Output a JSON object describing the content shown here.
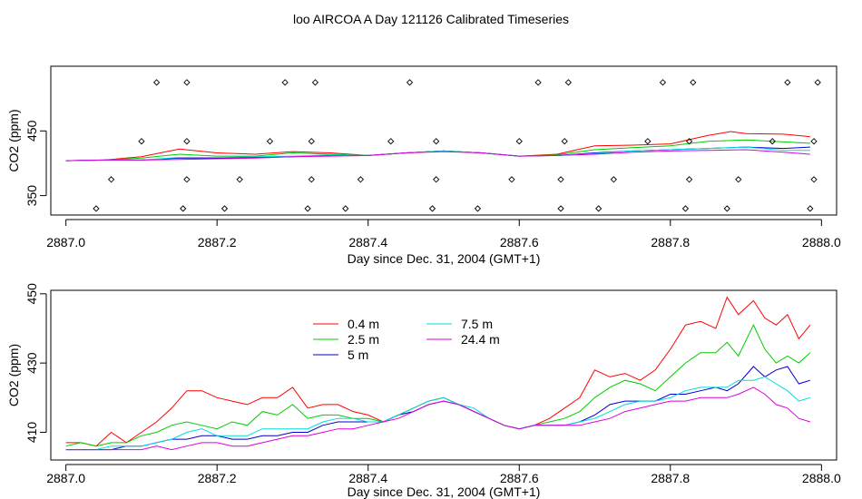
{
  "title": "loo AIRCOA A  Day 121126  Calibrated Timeseries",
  "chart_data": [
    {
      "type": "scatter",
      "title": "loo AIRCOA A  Day 121126  Calibrated Timeseries",
      "xlabel": "Day since Dec. 31, 2004 (GMT+1)",
      "ylabel": "CO2 (ppm)",
      "xlim": [
        2886.98,
        2888.02
      ],
      "ylim": [
        320,
        550
      ],
      "xticks": [
        2887.0,
        2887.2,
        2887.4,
        2887.6,
        2887.8,
        2888.0
      ],
      "xtick_labels": [
        "2887.0",
        "2887.2",
        "2887.4",
        "2887.6",
        "2887.8",
        "2888.0"
      ],
      "yticks": [
        350,
        450
      ],
      "ytick_labels": [
        "350",
        "450"
      ],
      "series": [
        {
          "color": "#ff0000",
          "x": [
            2887.0,
            2887.05,
            2887.1,
            2887.15,
            2887.2,
            2887.25,
            2887.3,
            2887.35,
            2887.4,
            2887.45,
            2887.5,
            2887.55,
            2887.6,
            2887.65,
            2887.7,
            2887.75,
            2887.8,
            2887.85,
            2887.88,
            2887.9,
            2887.95,
            2887.985
          ],
          "y": [
            404,
            405,
            410,
            422,
            416,
            414,
            418,
            416,
            412,
            416,
            419,
            416,
            411,
            414,
            427,
            428,
            430,
            443,
            449,
            446,
            445,
            441
          ]
        },
        {
          "color": "#00cc00",
          "x": [
            2887.0,
            2887.05,
            2887.1,
            2887.15,
            2887.2,
            2887.25,
            2887.3,
            2887.35,
            2887.4,
            2887.45,
            2887.5,
            2887.55,
            2887.6,
            2887.65,
            2887.7,
            2887.75,
            2887.8,
            2887.85,
            2887.9,
            2887.95,
            2887.985
          ],
          "y": [
            404,
            405,
            408,
            414,
            411,
            411,
            416,
            414,
            412,
            416,
            419,
            416,
            411,
            413,
            421,
            424,
            427,
            434,
            436,
            433,
            431
          ]
        },
        {
          "color": "#0000cc",
          "x": [
            2887.0,
            2887.05,
            2887.1,
            2887.15,
            2887.2,
            2887.25,
            2887.3,
            2887.35,
            2887.4,
            2887.45,
            2887.5,
            2887.55,
            2887.6,
            2887.65,
            2887.7,
            2887.75,
            2887.8,
            2887.85,
            2887.9,
            2887.95,
            2887.985
          ],
          "y": [
            404,
            405,
            405,
            408,
            408,
            409,
            410,
            412,
            412,
            416,
            419,
            416,
            411,
            412,
            416,
            419,
            421,
            423,
            425,
            423,
            425
          ]
        },
        {
          "color": "#00dddd",
          "x": [
            2887.0,
            2887.05,
            2887.1,
            2887.15,
            2887.2,
            2887.25,
            2887.3,
            2887.35,
            2887.4,
            2887.45,
            2887.5,
            2887.55,
            2887.6,
            2887.65,
            2887.7,
            2887.75,
            2887.8,
            2887.85,
            2887.9,
            2887.95,
            2887.985
          ],
          "y": [
            404,
            405,
            405,
            409,
            409,
            410,
            411,
            413,
            412,
            416,
            419,
            416,
            411,
            412,
            415,
            419,
            421,
            423,
            425,
            420,
            420
          ]
        },
        {
          "color": "#dd00dd",
          "x": [
            2887.0,
            2887.05,
            2887.1,
            2887.15,
            2887.2,
            2887.25,
            2887.3,
            2887.35,
            2887.4,
            2887.45,
            2887.5,
            2887.55,
            2887.6,
            2887.65,
            2887.7,
            2887.75,
            2887.8,
            2887.85,
            2887.9,
            2887.95,
            2887.985
          ],
          "y": [
            404,
            405,
            405,
            406,
            407,
            408,
            410,
            411,
            412,
            416,
            418,
            416,
            411,
            412,
            414,
            417,
            419,
            420,
            421,
            417,
            414
          ]
        }
      ],
      "points": {
        "x": [
          2887.04,
          2887.06,
          2887.1,
          2887.12,
          2887.155,
          2887.16,
          2887.16,
          2887.16,
          2887.21,
          2887.23,
          2887.27,
          2887.29,
          2887.32,
          2887.325,
          2887.325,
          2887.33,
          2887.37,
          2887.39,
          2887.43,
          2887.455,
          2887.485,
          2887.49,
          2887.49,
          2887.545,
          2887.59,
          2887.6,
          2887.625,
          2887.655,
          2887.655,
          2887.66,
          2887.665,
          2887.705,
          2887.725,
          2887.77,
          2887.79,
          2887.82,
          2887.825,
          2887.825,
          2887.83,
          2887.875,
          2887.89,
          2887.935,
          2887.955,
          2887.985,
          2887.99,
          2887.99,
          2887.995
        ],
        "y": [
          330,
          375,
          434,
          525,
          330,
          375,
          434,
          525,
          330,
          375,
          434,
          525,
          330,
          375,
          434,
          525,
          330,
          375,
          434,
          525,
          330,
          375,
          434,
          330,
          375,
          434,
          525,
          330,
          375,
          434,
          525,
          330,
          375,
          434,
          525,
          330,
          375,
          434,
          525,
          330,
          375,
          434,
          525,
          330,
          375,
          434,
          525
        ]
      },
      "grid": false
    },
    {
      "type": "line",
      "xlabel": "Day since Dec. 31, 2004 (GMT+1)",
      "ylabel": "CO2 (ppm)",
      "xlim": [
        2886.98,
        2888.02
      ],
      "ylim": [
        402,
        451
      ],
      "xticks": [
        2887.0,
        2887.2,
        2887.4,
        2887.6,
        2887.8,
        2888.0
      ],
      "xtick_labels": [
        "2887.0",
        "2887.2",
        "2887.4",
        "2887.6",
        "2887.8",
        "2888.0"
      ],
      "yticks": [
        410,
        430,
        450
      ],
      "ytick_labels": [
        "410",
        "430",
        "450"
      ],
      "legend_position": "top-center",
      "series": [
        {
          "name": "0.4 m",
          "color": "#ff0000",
          "x": [
            2887.0,
            2887.02,
            2887.04,
            2887.06,
            2887.08,
            2887.1,
            2887.12,
            2887.14,
            2887.16,
            2887.18,
            2887.2,
            2887.22,
            2887.24,
            2887.26,
            2887.28,
            2887.3,
            2887.32,
            2887.34,
            2887.36,
            2887.38,
            2887.4,
            2887.42,
            2887.44,
            2887.46,
            2887.48,
            2887.5,
            2887.52,
            2887.54,
            2887.56,
            2887.58,
            2887.6,
            2887.62,
            2887.64,
            2887.66,
            2887.68,
            2887.7,
            2887.72,
            2887.74,
            2887.76,
            2887.78,
            2887.8,
            2887.82,
            2887.84,
            2887.86,
            2887.875,
            2887.89,
            2887.91,
            2887.925,
            2887.94,
            2887.955,
            2887.97,
            2887.985
          ],
          "y": [
            407,
            407,
            406,
            410,
            407,
            410,
            413,
            417,
            422,
            422,
            420,
            419,
            418,
            420,
            420,
            423,
            417,
            418,
            418,
            416,
            415,
            413,
            415,
            417,
            419,
            420,
            418,
            416,
            414,
            412,
            411,
            412,
            414,
            417,
            420,
            428,
            426,
            427,
            425,
            428,
            434,
            441,
            442,
            440,
            449,
            444,
            448,
            443,
            441,
            444,
            437,
            441
          ]
        },
        {
          "name": "2.5 m",
          "color": "#00cc00",
          "x": [
            2887.0,
            2887.02,
            2887.04,
            2887.06,
            2887.08,
            2887.1,
            2887.12,
            2887.14,
            2887.16,
            2887.18,
            2887.2,
            2887.22,
            2887.24,
            2887.26,
            2887.28,
            2887.3,
            2887.32,
            2887.34,
            2887.36,
            2887.38,
            2887.4,
            2887.42,
            2887.44,
            2887.46,
            2887.48,
            2887.5,
            2887.52,
            2887.54,
            2887.56,
            2887.58,
            2887.6,
            2887.62,
            2887.64,
            2887.66,
            2887.68,
            2887.7,
            2887.72,
            2887.74,
            2887.76,
            2887.78,
            2887.8,
            2887.82,
            2887.84,
            2887.86,
            2887.875,
            2887.89,
            2887.91,
            2887.925,
            2887.94,
            2887.955,
            2887.97,
            2887.985
          ],
          "y": [
            406,
            407,
            406,
            407,
            407,
            409,
            410,
            412,
            413,
            412,
            411,
            413,
            412,
            416,
            415,
            418,
            414,
            415,
            415,
            414,
            414,
            413,
            415,
            417,
            419,
            420,
            418,
            416,
            414,
            412,
            411,
            412,
            413,
            414,
            416,
            420,
            423,
            425,
            424,
            422,
            426,
            430,
            433,
            433,
            436,
            432,
            441,
            434,
            430,
            432,
            430,
            433
          ]
        },
        {
          "name": "5 m",
          "color": "#0000cc",
          "x": [
            2887.0,
            2887.02,
            2887.04,
            2887.06,
            2887.08,
            2887.1,
            2887.12,
            2887.14,
            2887.16,
            2887.18,
            2887.2,
            2887.22,
            2887.24,
            2887.26,
            2887.28,
            2887.3,
            2887.32,
            2887.34,
            2887.36,
            2887.38,
            2887.4,
            2887.42,
            2887.44,
            2887.46,
            2887.48,
            2887.5,
            2887.52,
            2887.54,
            2887.56,
            2887.58,
            2887.6,
            2887.62,
            2887.64,
            2887.66,
            2887.68,
            2887.7,
            2887.72,
            2887.74,
            2887.76,
            2887.78,
            2887.8,
            2887.82,
            2887.84,
            2887.86,
            2887.875,
            2887.89,
            2887.91,
            2887.925,
            2887.94,
            2887.955,
            2887.97,
            2887.985
          ],
          "y": [
            405,
            405,
            405,
            405,
            406,
            406,
            407,
            408,
            408,
            409,
            409,
            408,
            408,
            409,
            409,
            410,
            410,
            412,
            413,
            413,
            413,
            413,
            415,
            416,
            418,
            419,
            418,
            416,
            414,
            412,
            411,
            412,
            412,
            412,
            413,
            415,
            418,
            419,
            419,
            419,
            421,
            421,
            422,
            423,
            422,
            424,
            429,
            426,
            428,
            429,
            424,
            425
          ]
        },
        {
          "name": "7.5 m",
          "color": "#00dddd",
          "x": [
            2887.0,
            2887.02,
            2887.04,
            2887.06,
            2887.08,
            2887.1,
            2887.12,
            2887.14,
            2887.16,
            2887.18,
            2887.2,
            2887.22,
            2887.24,
            2887.26,
            2887.28,
            2887.3,
            2887.32,
            2887.34,
            2887.36,
            2887.38,
            2887.4,
            2887.42,
            2887.44,
            2887.46,
            2887.48,
            2887.5,
            2887.52,
            2887.54,
            2887.56,
            2887.58,
            2887.6,
            2887.62,
            2887.64,
            2887.66,
            2887.68,
            2887.7,
            2887.72,
            2887.74,
            2887.76,
            2887.78,
            2887.8,
            2887.82,
            2887.84,
            2887.86,
            2887.875,
            2887.89,
            2887.91,
            2887.925,
            2887.94,
            2887.955,
            2887.97,
            2887.985
          ],
          "y": [
            405,
            405,
            405,
            406,
            406,
            406,
            407,
            408,
            410,
            411,
            409,
            409,
            409,
            411,
            411,
            411,
            411,
            413,
            414,
            414,
            413,
            413,
            415,
            417,
            419,
            420,
            418,
            417,
            414,
            412,
            411,
            412,
            412,
            412,
            413,
            414,
            416,
            418,
            419,
            419,
            420,
            422,
            423,
            423,
            423,
            425,
            425,
            426,
            424,
            422,
            419,
            420
          ]
        },
        {
          "name": "24.4 m",
          "color": "#dd00dd",
          "x": [
            2887.0,
            2887.02,
            2887.04,
            2887.06,
            2887.08,
            2887.1,
            2887.12,
            2887.14,
            2887.16,
            2887.18,
            2887.2,
            2887.22,
            2887.24,
            2887.26,
            2887.28,
            2887.3,
            2887.32,
            2887.34,
            2887.36,
            2887.38,
            2887.4,
            2887.42,
            2887.44,
            2887.46,
            2887.48,
            2887.5,
            2887.52,
            2887.54,
            2887.56,
            2887.58,
            2887.6,
            2887.62,
            2887.64,
            2887.66,
            2887.68,
            2887.7,
            2887.72,
            2887.74,
            2887.76,
            2887.78,
            2887.8,
            2887.82,
            2887.84,
            2887.86,
            2887.875,
            2887.89,
            2887.91,
            2887.925,
            2887.94,
            2887.955,
            2887.97,
            2887.985
          ],
          "y": [
            405,
            405,
            405,
            405,
            405,
            405,
            406,
            405,
            406,
            407,
            407,
            406,
            406,
            407,
            408,
            409,
            409,
            410,
            411,
            411,
            412,
            413,
            414,
            416,
            418,
            419,
            418,
            416,
            414,
            412,
            411,
            412,
            412,
            412,
            412,
            413,
            414,
            416,
            417,
            418,
            419,
            419,
            420,
            420,
            420,
            421,
            423,
            421,
            418,
            417,
            414,
            413
          ]
        }
      ],
      "grid": false
    }
  ]
}
